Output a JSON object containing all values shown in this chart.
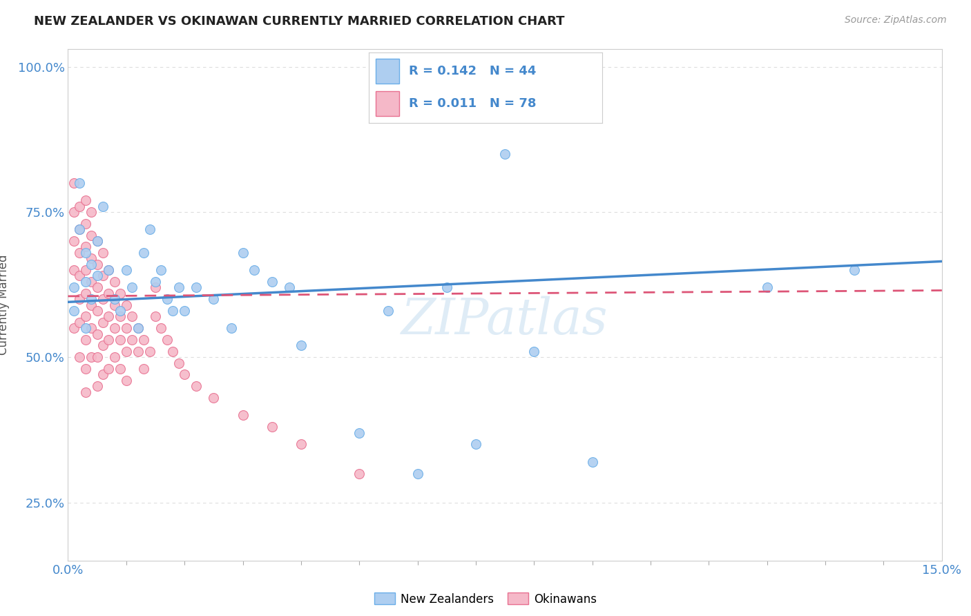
{
  "title": "NEW ZEALANDER VS OKINAWAN CURRENTLY MARRIED CORRELATION CHART",
  "source_text": "Source: ZipAtlas.com",
  "ylabel": "Currently Married",
  "xlim": [
    0.0,
    0.15
  ],
  "ylim": [
    0.15,
    1.03
  ],
  "xtick_labels": [
    "0.0%",
    "15.0%"
  ],
  "yticks": [
    0.25,
    0.5,
    0.75,
    1.0
  ],
  "ytick_labels": [
    "25.0%",
    "50.0%",
    "75.0%",
    "100.0%"
  ],
  "nz_color": "#aecef0",
  "nz_edge_color": "#6aaee8",
  "nz_line_color": "#4488cc",
  "ok_color": "#f5b8c8",
  "ok_edge_color": "#e87090",
  "ok_line_color": "#dd5577",
  "legend_nz_R": "0.142",
  "legend_nz_N": "44",
  "legend_ok_R": "0.011",
  "legend_ok_N": "78",
  "watermark": "ZIPatlas",
  "background_color": "#ffffff",
  "grid_color": "#dddddd",
  "nz_scatter_x": [
    0.001,
    0.001,
    0.002,
    0.002,
    0.003,
    0.003,
    0.003,
    0.004,
    0.004,
    0.005,
    0.005,
    0.006,
    0.007,
    0.008,
    0.009,
    0.01,
    0.011,
    0.012,
    0.013,
    0.014,
    0.015,
    0.016,
    0.017,
    0.018,
    0.019,
    0.02,
    0.022,
    0.025,
    0.028,
    0.03,
    0.032,
    0.035,
    0.038,
    0.04,
    0.05,
    0.055,
    0.06,
    0.065,
    0.07,
    0.075,
    0.08,
    0.09,
    0.12,
    0.135
  ],
  "nz_scatter_y": [
    0.62,
    0.58,
    0.8,
    0.72,
    0.68,
    0.63,
    0.55,
    0.66,
    0.6,
    0.7,
    0.64,
    0.76,
    0.65,
    0.6,
    0.58,
    0.65,
    0.62,
    0.55,
    0.68,
    0.72,
    0.63,
    0.65,
    0.6,
    0.58,
    0.62,
    0.58,
    0.62,
    0.6,
    0.55,
    0.68,
    0.65,
    0.63,
    0.62,
    0.52,
    0.37,
    0.58,
    0.3,
    0.62,
    0.35,
    0.85,
    0.51,
    0.32,
    0.62,
    0.65
  ],
  "ok_scatter_x": [
    0.001,
    0.001,
    0.001,
    0.001,
    0.001,
    0.002,
    0.002,
    0.002,
    0.002,
    0.002,
    0.002,
    0.002,
    0.003,
    0.003,
    0.003,
    0.003,
    0.003,
    0.003,
    0.003,
    0.003,
    0.003,
    0.004,
    0.004,
    0.004,
    0.004,
    0.004,
    0.004,
    0.004,
    0.005,
    0.005,
    0.005,
    0.005,
    0.005,
    0.005,
    0.005,
    0.006,
    0.006,
    0.006,
    0.006,
    0.006,
    0.006,
    0.007,
    0.007,
    0.007,
    0.007,
    0.007,
    0.008,
    0.008,
    0.008,
    0.008,
    0.009,
    0.009,
    0.009,
    0.009,
    0.01,
    0.01,
    0.01,
    0.01,
    0.011,
    0.011,
    0.012,
    0.012,
    0.013,
    0.013,
    0.014,
    0.015,
    0.015,
    0.016,
    0.017,
    0.018,
    0.019,
    0.02,
    0.022,
    0.025,
    0.03,
    0.035,
    0.04,
    0.05
  ],
  "ok_scatter_y": [
    0.8,
    0.75,
    0.7,
    0.65,
    0.55,
    0.76,
    0.72,
    0.68,
    0.64,
    0.6,
    0.56,
    0.5,
    0.77,
    0.73,
    0.69,
    0.65,
    0.61,
    0.57,
    0.53,
    0.48,
    0.44,
    0.75,
    0.71,
    0.67,
    0.63,
    0.59,
    0.55,
    0.5,
    0.7,
    0.66,
    0.62,
    0.58,
    0.54,
    0.5,
    0.45,
    0.68,
    0.64,
    0.6,
    0.56,
    0.52,
    0.47,
    0.65,
    0.61,
    0.57,
    0.53,
    0.48,
    0.63,
    0.59,
    0.55,
    0.5,
    0.61,
    0.57,
    0.53,
    0.48,
    0.59,
    0.55,
    0.51,
    0.46,
    0.57,
    0.53,
    0.55,
    0.51,
    0.53,
    0.48,
    0.51,
    0.62,
    0.57,
    0.55,
    0.53,
    0.51,
    0.49,
    0.47,
    0.45,
    0.43,
    0.4,
    0.38,
    0.35,
    0.3
  ],
  "nz_trend_x0": 0.0,
  "nz_trend_y0": 0.595,
  "nz_trend_x1": 0.15,
  "nz_trend_y1": 0.665,
  "ok_trend_x0": 0.0,
  "ok_trend_y0": 0.605,
  "ok_trend_x1": 0.15,
  "ok_trend_y1": 0.615
}
